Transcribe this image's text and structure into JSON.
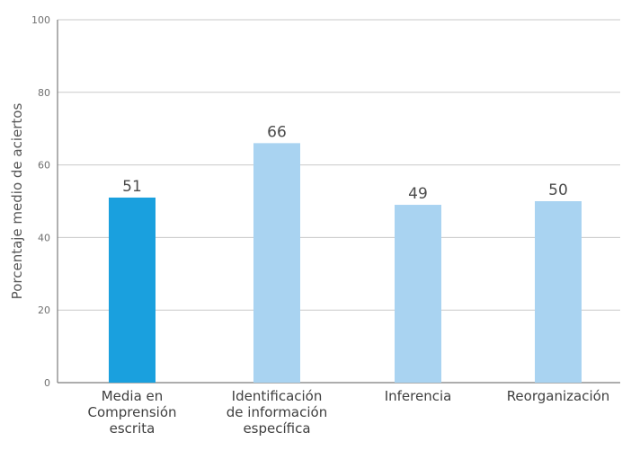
{
  "chart_data": {
    "type": "bar",
    "title": "",
    "xlabel": "",
    "ylabel": "Porcentaje medio de aciertos",
    "ylim": [
      0,
      100
    ],
    "yticks": [
      0,
      20,
      40,
      60,
      80,
      100
    ],
    "grid": true,
    "categories": [
      [
        "Media en",
        "Comprensión",
        "escrita"
      ],
      [
        "Identificación",
        "de información",
        "específica"
      ],
      [
        "Inferencia"
      ],
      [
        "Reorganización"
      ]
    ],
    "values": [
      51,
      66,
      49,
      50
    ],
    "bar_colors": [
      "#1aa0de",
      "#a9d3f1",
      "#a9d3f1",
      "#a9d3f1"
    ]
  }
}
